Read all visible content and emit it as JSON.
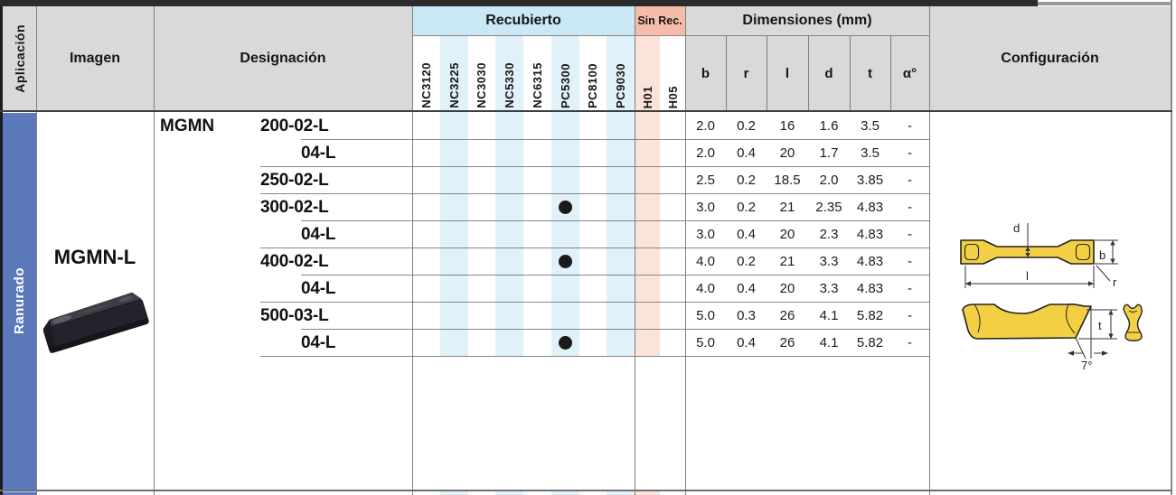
{
  "header": {
    "aplicacion": "Aplicación",
    "imagen": "Imagen",
    "designacion": "Designación",
    "recubierto": "Recubierto",
    "sin_rec": "Sin Rec.",
    "dimensiones": "Dimensiones (mm)",
    "configuracion": "Configuración",
    "coated_grades": [
      "NC3120",
      "NC3225",
      "NC3030",
      "NC5330",
      "NC6315",
      "PC5300",
      "PC8100",
      "PC9030"
    ],
    "uncoated_grades": [
      "H01",
      "H05"
    ],
    "dim_cols": [
      "b",
      "r",
      "l",
      "d",
      "t",
      "α°"
    ]
  },
  "application": "Ranurado",
  "image_label": "MGMN-L",
  "designation_prefix": "MGMN",
  "rows": [
    {
      "designation": "200-02-L",
      "variant": false,
      "sep": "short",
      "dots": [],
      "dims": [
        "2.0",
        "0.2",
        "16",
        "1.6",
        "3.5",
        "-"
      ]
    },
    {
      "designation": "04-L",
      "variant": true,
      "sep": "long",
      "dots": [],
      "dims": [
        "2.0",
        "0.4",
        "20",
        "1.7",
        "3.5",
        "-"
      ]
    },
    {
      "designation": "250-02-L",
      "variant": false,
      "sep": "long",
      "dots": [],
      "dims": [
        "2.5",
        "0.2",
        "18.5",
        "2.0",
        "3.85",
        "-"
      ]
    },
    {
      "designation": "300-02-L",
      "variant": false,
      "sep": "short",
      "dots": [
        "PC5300"
      ],
      "dims": [
        "3.0",
        "0.2",
        "21",
        "2.35",
        "4.83",
        "-"
      ]
    },
    {
      "designation": "04-L",
      "variant": true,
      "sep": "long",
      "dots": [],
      "dims": [
        "3.0",
        "0.4",
        "20",
        "2.3",
        "4.83",
        "-"
      ]
    },
    {
      "designation": "400-02-L",
      "variant": false,
      "sep": "short",
      "dots": [
        "PC5300"
      ],
      "dims": [
        "4.0",
        "0.2",
        "21",
        "3.3",
        "4.83",
        "-"
      ]
    },
    {
      "designation": "04-L",
      "variant": true,
      "sep": "long",
      "dots": [],
      "dims": [
        "4.0",
        "0.4",
        "20",
        "3.3",
        "4.83",
        "-"
      ]
    },
    {
      "designation": "500-03-L",
      "variant": false,
      "sep": "short",
      "dots": [],
      "dims": [
        "5.0",
        "0.3",
        "26",
        "4.1",
        "5.82",
        "-"
      ]
    },
    {
      "designation": "04-L",
      "variant": true,
      "sep": "long",
      "dots": [
        "PC5300"
      ],
      "dims": [
        "5.0",
        "0.4",
        "26",
        "4.1",
        "5.82",
        "-"
      ]
    }
  ],
  "configuration": {
    "labels": {
      "d": "d",
      "b": "b",
      "l": "l",
      "r": "r",
      "t": "t",
      "angle": "7°"
    }
  },
  "colors": {
    "application_band_blue": "#5b79bb",
    "coated_header_bg": "#cbe8f7",
    "coated_stripe": "#e0f1fa",
    "uncoated_header_bg": "#f5bcab",
    "uncoated_stripe": "#fbe3da",
    "header_gray": "#d9d9d9",
    "insert_yellow": "#f2cf43",
    "dot_black": "#1a1a1a"
  }
}
